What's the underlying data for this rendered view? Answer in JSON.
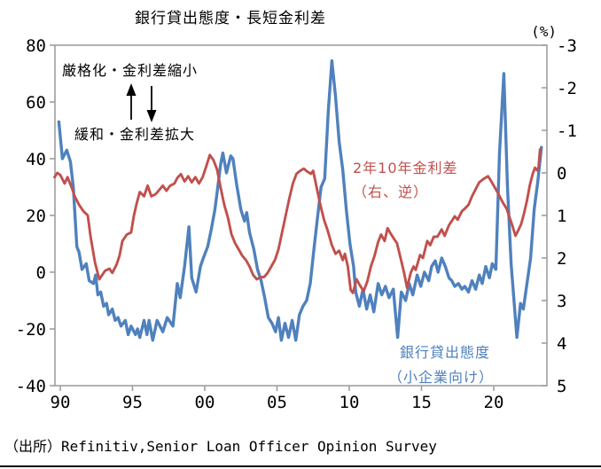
{
  "title": "銀行貸出態度・長短金利差",
  "right_axis_unit": "(%)",
  "annotations": {
    "tighten": "厳格化・金利差縮小",
    "ease": "緩和・金利差拡大",
    "red_series_label_line1": "2年10年金利差",
    "red_series_label_line2": "（右、逆）",
    "blue_series_label_line1": "銀行貸出態度",
    "blue_series_label_line2": "（小企業向け）"
  },
  "source": "（出所）Refinitiv,Senior Loan Officer Opinion Survey",
  "colors": {
    "blue": "#4F81BD",
    "red": "#C0504D",
    "axis": "#9E9E9E",
    "text": "#000000"
  },
  "chart_data": {
    "type": "line",
    "title": "銀行貸出態度・長短金利差",
    "left_axis": {
      "label": "",
      "ticks": [
        80,
        60,
        40,
        20,
        0,
        -20,
        -40
      ],
      "range": [
        -40,
        80
      ]
    },
    "right_axis": {
      "label": "(%)",
      "ticks": [
        -3,
        -2,
        -1,
        0,
        1,
        2,
        3,
        4,
        5
      ],
      "range": [
        -3,
        5
      ],
      "inverted": true
    },
    "x_axis": {
      "tick_labels": [
        "90",
        "95",
        "00",
        "05",
        "10",
        "15",
        "20"
      ],
      "tick_years": [
        1990,
        1995,
        2000,
        2005,
        2010,
        2015,
        2020
      ],
      "range": [
        1989.6,
        2023.7
      ]
    },
    "grid": false,
    "legend_position": "in-plot text labels",
    "series": [
      {
        "name": "銀行貸出態度（小企業向け）",
        "axis": "left",
        "color": "#4F81BD",
        "points": [
          [
            1989.9,
            53
          ],
          [
            1990.15,
            40
          ],
          [
            1990.45,
            43
          ],
          [
            1990.7,
            39
          ],
          [
            1990.9,
            30
          ],
          [
            1991.15,
            9
          ],
          [
            1991.3,
            7
          ],
          [
            1991.5,
            1
          ],
          [
            1991.8,
            3
          ],
          [
            1992.0,
            -3
          ],
          [
            1992.3,
            -4
          ],
          [
            1992.45,
            -1
          ],
          [
            1992.6,
            -8
          ],
          [
            1992.8,
            -7
          ],
          [
            1993.0,
            -12
          ],
          [
            1993.2,
            -11
          ],
          [
            1993.35,
            -15
          ],
          [
            1993.6,
            -13
          ],
          [
            1993.8,
            -17
          ],
          [
            1994.0,
            -16
          ],
          [
            1994.2,
            -19
          ],
          [
            1994.5,
            -17
          ],
          [
            1994.7,
            -22
          ],
          [
            1994.9,
            -19
          ],
          [
            1995.2,
            -22
          ],
          [
            1995.35,
            -20
          ],
          [
            1995.5,
            -23
          ],
          [
            1995.8,
            -17
          ],
          [
            1996.0,
            -22
          ],
          [
            1996.15,
            -17
          ],
          [
            1996.4,
            -24
          ],
          [
            1996.7,
            -17
          ],
          [
            1997.1,
            -21
          ],
          [
            1997.4,
            -16
          ],
          [
            1997.8,
            -19
          ],
          [
            1998.1,
            -4
          ],
          [
            1998.3,
            -9
          ],
          [
            1998.6,
            2
          ],
          [
            1998.9,
            16
          ],
          [
            1999.1,
            -2
          ],
          [
            1999.4,
            -7
          ],
          [
            1999.7,
            2
          ],
          [
            1999.9,
            5
          ],
          [
            2000.2,
            9
          ],
          [
            2000.45,
            15
          ],
          [
            2000.7,
            22
          ],
          [
            2000.9,
            30
          ],
          [
            2001.1,
            38
          ],
          [
            2001.25,
            42
          ],
          [
            2001.5,
            35
          ],
          [
            2001.8,
            41
          ],
          [
            2001.95,
            40
          ],
          [
            2002.2,
            31
          ],
          [
            2002.5,
            22
          ],
          [
            2002.75,
            18
          ],
          [
            2002.9,
            21
          ],
          [
            2003.1,
            14
          ],
          [
            2003.4,
            8
          ],
          [
            2003.65,
            1
          ],
          [
            2003.9,
            -3
          ],
          [
            2004.15,
            -9
          ],
          [
            2004.4,
            -16
          ],
          [
            2004.65,
            -18
          ],
          [
            2004.9,
            -21
          ],
          [
            2005.1,
            -16
          ],
          [
            2005.3,
            -24
          ],
          [
            2005.55,
            -18
          ],
          [
            2005.8,
            -23
          ],
          [
            2006.05,
            -17
          ],
          [
            2006.3,
            -24
          ],
          [
            2006.55,
            -15
          ],
          [
            2006.8,
            -12
          ],
          [
            2007.05,
            -10
          ],
          [
            2007.3,
            -4
          ],
          [
            2007.55,
            8
          ],
          [
            2007.8,
            19
          ],
          [
            2008.05,
            30
          ],
          [
            2008.3,
            33
          ],
          [
            2008.55,
            57
          ],
          [
            2008.8,
            74.5
          ],
          [
            2009.05,
            62
          ],
          [
            2009.3,
            46
          ],
          [
            2009.55,
            36
          ],
          [
            2009.8,
            22
          ],
          [
            2010.05,
            10
          ],
          [
            2010.3,
            2
          ],
          [
            2010.45,
            -7
          ],
          [
            2010.7,
            -12
          ],
          [
            2010.95,
            -6
          ],
          [
            2011.2,
            -13
          ],
          [
            2011.45,
            -8
          ],
          [
            2011.7,
            -14
          ],
          [
            2012.0,
            -4
          ],
          [
            2012.25,
            -8
          ],
          [
            2012.5,
            -5
          ],
          [
            2012.75,
            -9
          ],
          [
            2013.05,
            -6
          ],
          [
            2013.35,
            -23
          ],
          [
            2013.6,
            -7
          ],
          [
            2013.9,
            -10
          ],
          [
            2014.15,
            -4
          ],
          [
            2014.4,
            -8
          ],
          [
            2014.7,
            -1
          ],
          [
            2014.95,
            -5
          ],
          [
            2015.2,
            0
          ],
          [
            2015.5,
            -3
          ],
          [
            2015.7,
            2
          ],
          [
            2015.95,
            4
          ],
          [
            2016.15,
            0
          ],
          [
            2016.4,
            5
          ],
          [
            2016.65,
            2
          ],
          [
            2016.9,
            -2
          ],
          [
            2017.1,
            -3
          ],
          [
            2017.3,
            -5
          ],
          [
            2017.55,
            -4
          ],
          [
            2017.8,
            -6
          ],
          [
            2018.0,
            -5
          ],
          [
            2018.25,
            -7
          ],
          [
            2018.5,
            -3
          ],
          [
            2018.75,
            -6
          ],
          [
            2019.0,
            -1
          ],
          [
            2019.2,
            -4
          ],
          [
            2019.45,
            2
          ],
          [
            2019.7,
            -2
          ],
          [
            2019.9,
            3
          ],
          [
            2020.15,
            1
          ],
          [
            2020.4,
            42
          ],
          [
            2020.7,
            70
          ],
          [
            2020.95,
            30
          ],
          [
            2021.2,
            3
          ],
          [
            2021.6,
            -23
          ],
          [
            2021.85,
            -11
          ],
          [
            2022.05,
            -13
          ],
          [
            2022.3,
            -4
          ],
          [
            2022.55,
            5
          ],
          [
            2022.8,
            22
          ],
          [
            2023.05,
            32
          ],
          [
            2023.3,
            44
          ]
        ]
      },
      {
        "name": "2年10年金利差（右、逆）",
        "axis": "right",
        "color": "#C0504D",
        "points": [
          [
            1989.6,
            0.1
          ],
          [
            1989.8,
            0.0
          ],
          [
            1990.0,
            0.05
          ],
          [
            1990.3,
            0.25
          ],
          [
            1990.5,
            0.1
          ],
          [
            1990.8,
            0.35
          ],
          [
            1991.0,
            0.55
          ],
          [
            1991.3,
            0.75
          ],
          [
            1991.6,
            0.9
          ],
          [
            1991.9,
            1.0
          ],
          [
            1992.1,
            1.5
          ],
          [
            1992.4,
            2.1
          ],
          [
            1992.7,
            2.5
          ],
          [
            1992.9,
            2.4
          ],
          [
            1993.1,
            2.3
          ],
          [
            1993.4,
            2.25
          ],
          [
            1993.6,
            2.35
          ],
          [
            1993.9,
            2.15
          ],
          [
            1994.1,
            1.95
          ],
          [
            1994.3,
            1.6
          ],
          [
            1994.6,
            1.45
          ],
          [
            1994.9,
            1.4
          ],
          [
            1995.1,
            1.0
          ],
          [
            1995.3,
            0.7
          ],
          [
            1995.5,
            0.45
          ],
          [
            1995.8,
            0.55
          ],
          [
            1996.05,
            0.3
          ],
          [
            1996.3,
            0.55
          ],
          [
            1996.6,
            0.5
          ],
          [
            1996.9,
            0.38
          ],
          [
            1997.1,
            0.3
          ],
          [
            1997.35,
            0.42
          ],
          [
            1997.6,
            0.3
          ],
          [
            1997.9,
            0.25
          ],
          [
            1998.1,
            0.12
          ],
          [
            1998.35,
            0.03
          ],
          [
            1998.6,
            0.2
          ],
          [
            1998.85,
            0.08
          ],
          [
            1999.1,
            0.22
          ],
          [
            1999.35,
            0.1
          ],
          [
            1999.6,
            0.25
          ],
          [
            1999.85,
            0.1
          ],
          [
            2000.1,
            -0.15
          ],
          [
            2000.35,
            -0.42
          ],
          [
            2000.6,
            -0.3
          ],
          [
            2000.85,
            -0.08
          ],
          [
            2001.1,
            0.35
          ],
          [
            2001.35,
            0.75
          ],
          [
            2001.6,
            1.05
          ],
          [
            2001.85,
            1.45
          ],
          [
            2002.1,
            1.65
          ],
          [
            2002.35,
            1.8
          ],
          [
            2002.6,
            1.95
          ],
          [
            2002.85,
            2.05
          ],
          [
            2003.1,
            2.2
          ],
          [
            2003.35,
            2.4
          ],
          [
            2003.6,
            2.5
          ],
          [
            2003.85,
            2.45
          ],
          [
            2004.1,
            2.45
          ],
          [
            2004.35,
            2.35
          ],
          [
            2004.6,
            2.2
          ],
          [
            2004.85,
            2.05
          ],
          [
            2005.1,
            1.8
          ],
          [
            2005.35,
            1.4
          ],
          [
            2005.6,
            1.0
          ],
          [
            2005.85,
            0.6
          ],
          [
            2006.1,
            0.25
          ],
          [
            2006.35,
            0.02
          ],
          [
            2006.6,
            -0.05
          ],
          [
            2006.85,
            -0.1
          ],
          [
            2007.1,
            -0.03
          ],
          [
            2007.35,
            0.02
          ],
          [
            2007.5,
            -0.05
          ],
          [
            2007.75,
            0.35
          ],
          [
            2008.0,
            0.75
          ],
          [
            2008.25,
            1.1
          ],
          [
            2008.5,
            1.35
          ],
          [
            2008.8,
            1.7
          ],
          [
            2009.05,
            1.9
          ],
          [
            2009.3,
            1.83
          ],
          [
            2009.55,
            2.05
          ],
          [
            2009.7,
            1.9
          ],
          [
            2009.9,
            2.2
          ],
          [
            2010.1,
            2.75
          ],
          [
            2010.25,
            2.82
          ],
          [
            2010.5,
            2.5
          ],
          [
            2010.75,
            2.65
          ],
          [
            2011.0,
            2.78
          ],
          [
            2011.25,
            2.55
          ],
          [
            2011.5,
            2.2
          ],
          [
            2011.75,
            1.95
          ],
          [
            2012.0,
            1.62
          ],
          [
            2012.2,
            1.45
          ],
          [
            2012.45,
            1.6
          ],
          [
            2012.65,
            1.3
          ],
          [
            2012.85,
            1.42
          ],
          [
            2013.1,
            1.55
          ],
          [
            2013.3,
            1.65
          ],
          [
            2013.55,
            2.0
          ],
          [
            2013.8,
            2.35
          ],
          [
            2014.0,
            2.7
          ],
          [
            2014.25,
            2.35
          ],
          [
            2014.45,
            2.2
          ],
          [
            2014.6,
            2.28
          ],
          [
            2014.9,
            1.93
          ],
          [
            2015.1,
            2.0
          ],
          [
            2015.4,
            1.6
          ],
          [
            2015.6,
            1.7
          ],
          [
            2015.85,
            1.5
          ],
          [
            2016.1,
            1.5
          ],
          [
            2016.4,
            1.33
          ],
          [
            2016.6,
            1.48
          ],
          [
            2016.9,
            1.23
          ],
          [
            2017.1,
            1.13
          ],
          [
            2017.3,
            1.02
          ],
          [
            2017.5,
            1.1
          ],
          [
            2017.8,
            0.9
          ],
          [
            2018.0,
            0.84
          ],
          [
            2018.25,
            0.75
          ],
          [
            2018.5,
            0.55
          ],
          [
            2018.8,
            0.35
          ],
          [
            2019.0,
            0.22
          ],
          [
            2019.3,
            0.14
          ],
          [
            2019.6,
            0.08
          ],
          [
            2019.8,
            0.18
          ],
          [
            2020.0,
            0.3
          ],
          [
            2020.3,
            0.48
          ],
          [
            2020.6,
            0.68
          ],
          [
            2020.9,
            0.85
          ],
          [
            2021.1,
            1.05
          ],
          [
            2021.3,
            1.25
          ],
          [
            2021.5,
            1.48
          ],
          [
            2021.7,
            1.35
          ],
          [
            2021.9,
            1.2
          ],
          [
            2022.1,
            0.95
          ],
          [
            2022.3,
            0.65
          ],
          [
            2022.5,
            0.28
          ],
          [
            2022.7,
            0.02
          ],
          [
            2022.85,
            -0.12
          ],
          [
            2023.0,
            -0.06
          ],
          [
            2023.1,
            -0.12
          ],
          [
            2023.2,
            -0.55
          ]
        ]
      }
    ]
  }
}
